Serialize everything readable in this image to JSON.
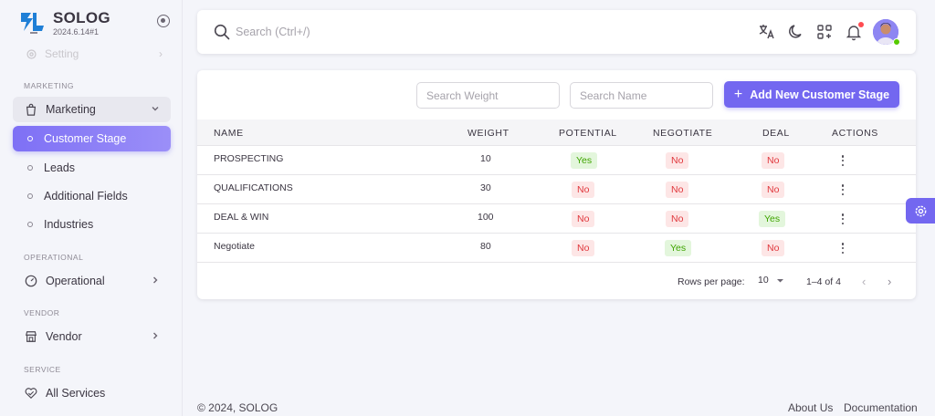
{
  "brand": {
    "name": "SOLOG",
    "version": "2024.6.14#1"
  },
  "sidebar": {
    "faded_item": "Setting",
    "sections": {
      "marketing": "MARKETING",
      "operational": "OPERATIONAL",
      "vendor": "VENDOR",
      "service": "SERVICE"
    },
    "marketing_group": "Marketing",
    "marketing_items": [
      "Customer Stage",
      "Leads",
      "Additional Fields",
      "Industries"
    ],
    "operational": "Operational",
    "vendor": "Vendor",
    "all_services": "All Services"
  },
  "header": {
    "search_placeholder": "Search (Ctrl+/)",
    "icons": [
      "translate-icon",
      "moon-icon",
      "apps-icon",
      "bell-icon"
    ]
  },
  "toolbar": {
    "search_weight_placeholder": "Search Weight",
    "search_name_placeholder": "Search Name",
    "add_label": "Add New Customer Stage"
  },
  "table": {
    "columns": [
      "NAME",
      "WEIGHT",
      "POTENTIAL",
      "NEGOTIATE",
      "DEAL",
      "ACTIONS"
    ],
    "rows": [
      {
        "name": "PROSPECTING",
        "weight": "10",
        "potential": "Yes",
        "negotiate": "No",
        "deal": "No"
      },
      {
        "name": "QUALIFICATIONS",
        "weight": "30",
        "potential": "No",
        "negotiate": "No",
        "deal": "No"
      },
      {
        "name": "DEAL & WIN",
        "weight": "100",
        "potential": "No",
        "negotiate": "No",
        "deal": "Yes"
      },
      {
        "name": "Negotiate",
        "weight": "80",
        "potential": "No",
        "negotiate": "Yes",
        "deal": "No"
      }
    ]
  },
  "pagination": {
    "rows_per_page_label": "Rows per page:",
    "rows_per_page": "10",
    "range": "1–4 of 4"
  },
  "footer": {
    "copyright": "© 2024, SOLOG",
    "about": "About Us",
    "docs": "Documentation"
  },
  "colors": {
    "primary": "#7367f0",
    "success": "#56ca00",
    "error": "#ff4c51"
  }
}
